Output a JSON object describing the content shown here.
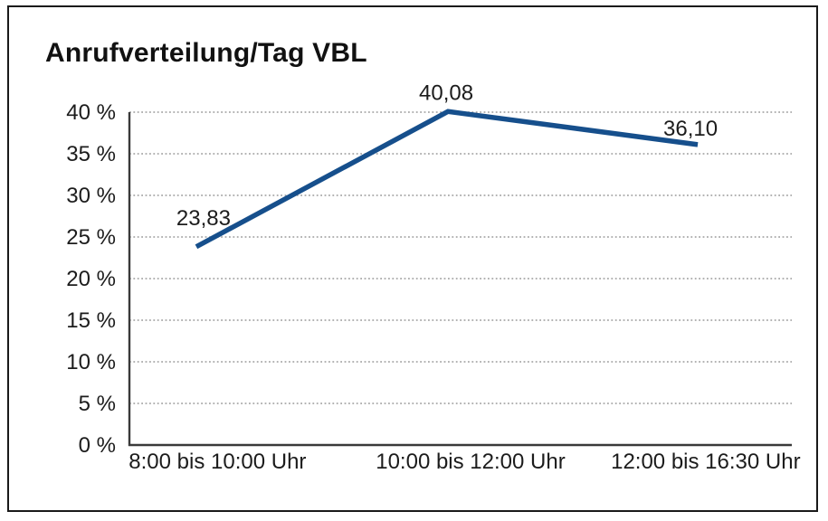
{
  "chart_data": {
    "type": "line",
    "title": "Anrufverteilung/Tag VBL",
    "categories": [
      "8:00 bis 10:00 Uhr",
      "10:00 bis 12:00 Uhr",
      "12:00 bis 16:30 Uhr"
    ],
    "values": [
      23.83,
      40.08,
      36.1
    ],
    "point_labels": [
      "23,83",
      "40,08",
      "36,10"
    ],
    "series_name": "Anrufverteilung",
    "xlabel": "",
    "ylabel": "",
    "ylim": [
      0,
      40
    ],
    "ytick_values": [
      0,
      5,
      10,
      15,
      20,
      25,
      30,
      35,
      40
    ],
    "ytick_labels": [
      "0 %",
      "5 %",
      "10 %",
      "15 %",
      "20 %",
      "25 %",
      "30 %",
      "35 %",
      "40 %"
    ],
    "grid": "horizontal-dotted",
    "legend": "none",
    "colors": {
      "line": "#164f8c",
      "grid": "#9a9a9a",
      "axis": "#3a3a3a",
      "text": "#1c1c1c",
      "title": "#111111",
      "background": "#ffffff"
    }
  }
}
